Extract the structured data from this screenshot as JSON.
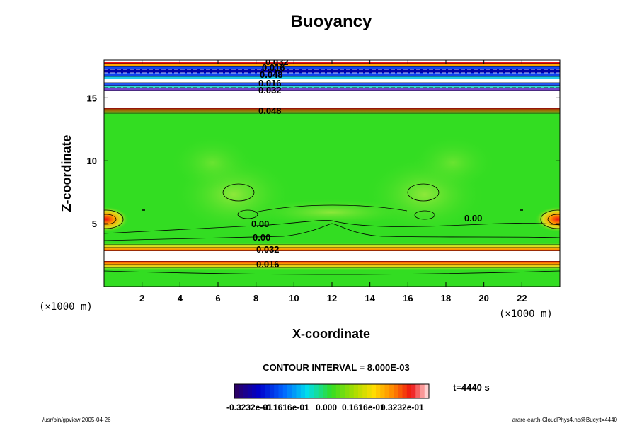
{
  "chart_data": {
    "type": "heatmap",
    "title": "Buoyancy",
    "xlabel": "X-coordinate",
    "ylabel": "Z-coordinate",
    "x_unit": "(×1000 m)",
    "z_unit": "(×1000 m)",
    "xlim": [
      0,
      24
    ],
    "ylim": [
      0,
      18
    ],
    "x_ticks": [
      "2",
      "4",
      "6",
      "8",
      "10",
      "12",
      "14",
      "16",
      "18",
      "20",
      "22"
    ],
    "y_ticks": [
      "5",
      "10",
      "15"
    ],
    "contour_interval_text": "CONTOUR INTERVAL = 8.000E-03",
    "time_text": "t=4440 s",
    "colorbar_ticks": [
      "-0.3232e-01",
      "-0.1616e-01",
      "0.000",
      "0.1616e-01",
      "0.3232e-01"
    ],
    "contour_labels": [
      "0.00",
      "0.00",
      "0.00",
      "0.032",
      "0.016",
      "0.048",
      "0.016",
      "0.032",
      "0.016"
    ],
    "footer_left": "/usr/bin/gpview 2005-04-26",
    "footer_right": "arare-earth-CloudPhys4.nc@Bucy,t=4440"
  },
  "colors": {
    "background_field": "#33dd22",
    "high": "#ee1111",
    "low": "#0000aa"
  }
}
